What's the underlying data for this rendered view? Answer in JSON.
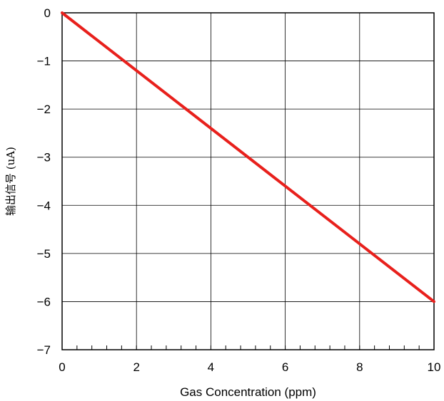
{
  "chart_data": {
    "type": "line",
    "title": "",
    "xlabel": "Gas Concentration (ppm)",
    "ylabel": "输出信号 (uA)",
    "xlim": [
      0,
      10
    ],
    "ylim": [
      -7,
      0
    ],
    "x_ticks": [
      0,
      2,
      4,
      6,
      8,
      10
    ],
    "x_tick_labels": [
      "0",
      "2",
      "4",
      "6",
      "8",
      "10"
    ],
    "y_ticks": [
      0,
      -1,
      -2,
      -3,
      -4,
      -5,
      -6,
      -7
    ],
    "y_tick_labels": [
      "0",
      "−1",
      "−2",
      "−3",
      "−4",
      "−5",
      "−6",
      "−7"
    ],
    "x_minor_step": 0.4,
    "grid": true,
    "legend": "none",
    "series": [
      {
        "x": [
          0,
          10
        ],
        "values": [
          0,
          -6
        ],
        "color": "#e8201c"
      }
    ]
  }
}
